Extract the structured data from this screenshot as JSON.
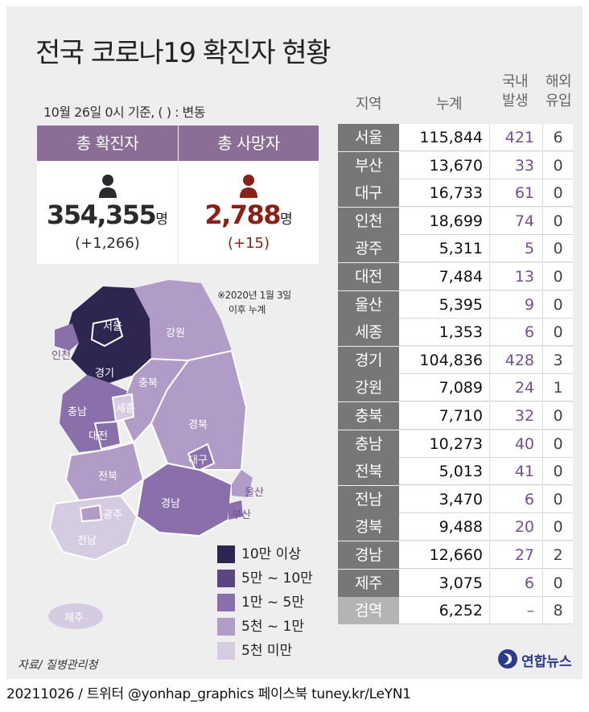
{
  "title": "전국 코로나19 확진자 현황",
  "basis": "10월 26일 0시 기준, ( ) : 변동",
  "cards": {
    "cases": {
      "label": "총 확진자",
      "value": "354,355",
      "unit": "명",
      "change": "(+1,266)",
      "color": "#2b2a2e"
    },
    "deaths": {
      "label": "총 사망자",
      "value": "2,788",
      "unit": "명",
      "change": "(+15)",
      "color": "#8b2016"
    }
  },
  "note": {
    "line1": "※2020년 1월 3일",
    "line2": "이후 누계"
  },
  "table_headers": {
    "region": "지역",
    "total": "누계",
    "domestic_1": "국내",
    "domestic_2": "발생",
    "imported_1": "해외",
    "imported_2": "유입"
  },
  "chart_data": {
    "type": "table",
    "columns": [
      "지역",
      "누계",
      "국내 발생",
      "해외 유입"
    ],
    "rows": [
      {
        "region": "서울",
        "total": "115,844",
        "domestic": "421",
        "imported": "6"
      },
      {
        "region": "부산",
        "total": "13,670",
        "domestic": "33",
        "imported": "0"
      },
      {
        "region": "대구",
        "total": "16,733",
        "domestic": "61",
        "imported": "0"
      },
      {
        "region": "인천",
        "total": "18,699",
        "domestic": "74",
        "imported": "0"
      },
      {
        "region": "광주",
        "total": "5,311",
        "domestic": "5",
        "imported": "0"
      },
      {
        "region": "대전",
        "total": "7,484",
        "domestic": "13",
        "imported": "0"
      },
      {
        "region": "울산",
        "total": "5,395",
        "domestic": "9",
        "imported": "0"
      },
      {
        "region": "세종",
        "total": "1,353",
        "domestic": "6",
        "imported": "0"
      },
      {
        "region": "경기",
        "total": "104,836",
        "domestic": "428",
        "imported": "3"
      },
      {
        "region": "강원",
        "total": "7,089",
        "domestic": "24",
        "imported": "1"
      },
      {
        "region": "충북",
        "total": "7,710",
        "domestic": "32",
        "imported": "0"
      },
      {
        "region": "충남",
        "total": "10,273",
        "domestic": "40",
        "imported": "0"
      },
      {
        "region": "전북",
        "total": "5,013",
        "domestic": "41",
        "imported": "0"
      },
      {
        "region": "전남",
        "total": "3,470",
        "domestic": "6",
        "imported": "0"
      },
      {
        "region": "경북",
        "total": "9,488",
        "domestic": "20",
        "imported": "0"
      },
      {
        "region": "경남",
        "total": "12,660",
        "domestic": "27",
        "imported": "2"
      },
      {
        "region": "제주",
        "total": "3,075",
        "domestic": "6",
        "imported": "0"
      },
      {
        "region": "검역",
        "total": "6,252",
        "domestic": "–",
        "imported": "8"
      }
    ]
  },
  "legend": [
    {
      "label": "10만 이상",
      "color": "#2e2650"
    },
    {
      "label": "5만 ~ 10만",
      "color": "#5b4682"
    },
    {
      "label": "1만 ~ 5만",
      "color": "#8a70ab"
    },
    {
      "label": "5천 ~ 1만",
      "color": "#b09cc6"
    },
    {
      "label": "5천 미만",
      "color": "#d6cce2"
    }
  ],
  "map_labels": {
    "seoul": "서울",
    "gyeonggi": "경기",
    "incheon": "인천",
    "gangwon": "강원",
    "chungbuk": "충북",
    "chungnam": "충남",
    "sejong": "세종",
    "daejeon": "대전",
    "gyeongbuk": "경북",
    "daegu": "대구",
    "jeonbuk": "전북",
    "gwangju": "광주",
    "jeonnam": "전남",
    "gyeongnam": "경남",
    "ulsan": "울산",
    "busan": "부산",
    "jeju": "제주"
  },
  "source": "자료/ 질병관리청",
  "logo": "연합뉴스",
  "footer": "20211026 / 트위터 @yonhap_graphics  페이스북 tuney.kr/LeYN1"
}
